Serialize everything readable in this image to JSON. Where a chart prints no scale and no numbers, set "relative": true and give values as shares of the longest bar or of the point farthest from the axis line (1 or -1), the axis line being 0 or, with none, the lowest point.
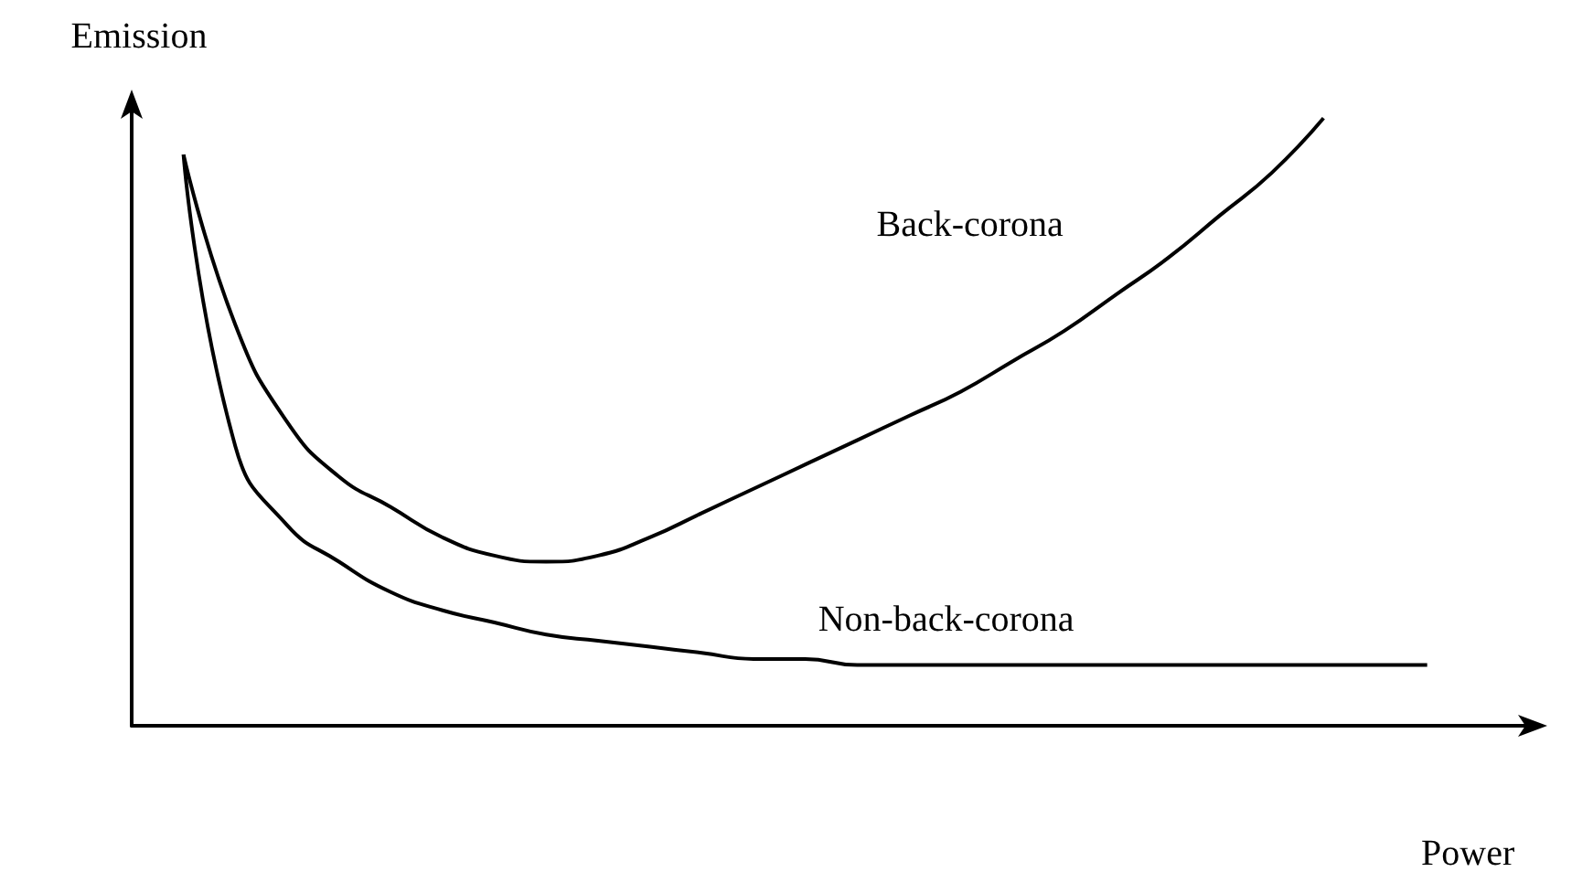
{
  "chart_data": {
    "type": "line",
    "relative": true,
    "xlabel": "Power",
    "ylabel": "Emission",
    "legend": false,
    "grid": false,
    "marker": "none",
    "line_style": "solid",
    "categories": [
      null,
      null,
      null,
      null,
      null,
      null,
      null,
      null,
      null,
      null,
      null,
      null,
      null,
      null,
      null,
      null,
      null,
      null,
      null,
      null,
      null,
      null,
      null,
      null,
      null,
      null,
      null,
      null
    ],
    "series": [
      {
        "name": "Back-corona",
        "color": "#000000",
        "values": [
          null,
          0.94,
          0.66,
          0.5,
          0.41,
          0.36,
          0.31,
          0.28,
          0.27,
          0.28,
          0.31,
          0.35,
          0.39,
          0.43,
          0.47,
          0.51,
          0.55,
          0.6,
          0.65,
          0.71,
          0.77,
          0.84,
          0.91,
          1.0,
          null,
          null,
          null,
          null
        ]
      },
      {
        "name": "Non-back-corona",
        "color": "#000000",
        "values": [
          null,
          0.94,
          0.46,
          0.33,
          0.27,
          0.22,
          0.19,
          0.17,
          0.15,
          0.14,
          0.13,
          0.12,
          0.11,
          0.11,
          0.1,
          0.1,
          0.1,
          0.1,
          0.1,
          0.1,
          0.1,
          0.1,
          0.1,
          0.1,
          0.1,
          0.1,
          null,
          null
        ]
      }
    ]
  }
}
